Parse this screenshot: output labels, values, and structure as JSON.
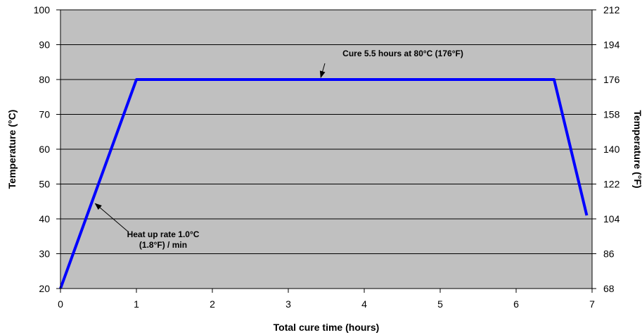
{
  "chart_data": {
    "type": "line",
    "title": "",
    "xlabel": "Total cure time (hours)",
    "ylabel": "Temperature (°C)",
    "y2label": "Temperature (°F)",
    "xlim": [
      0,
      7
    ],
    "ylim": [
      20,
      100
    ],
    "y2lim": [
      68,
      212
    ],
    "x_ticks": [
      "0",
      "1",
      "2",
      "3",
      "4",
      "5",
      "6",
      "7"
    ],
    "y_ticks": [
      "20",
      "30",
      "40",
      "50",
      "60",
      "70",
      "80",
      "90",
      "100"
    ],
    "y2_ticks": [
      "68",
      "86",
      "104",
      "122",
      "140",
      "158",
      "176",
      "194",
      "212"
    ],
    "grid": true,
    "legend": "none",
    "colors": {
      "plot_background": "#c0c0c0",
      "series": "#0000ff",
      "grid": "#000000"
    },
    "series": [
      {
        "x": [
          0,
          1,
          6.5,
          6.93
        ],
        "y": [
          20,
          80,
          80,
          41
        ]
      }
    ],
    "annotations": [
      {
        "lines": [
          "Cure 5.5 hours at 80°C (176°F)"
        ],
        "point": [
          3.4,
          80
        ]
      },
      {
        "lines": [
          "Heat up rate 1.0°C",
          "(1.8°F) / min"
        ],
        "point": [
          0.43,
          45
        ]
      }
    ]
  }
}
